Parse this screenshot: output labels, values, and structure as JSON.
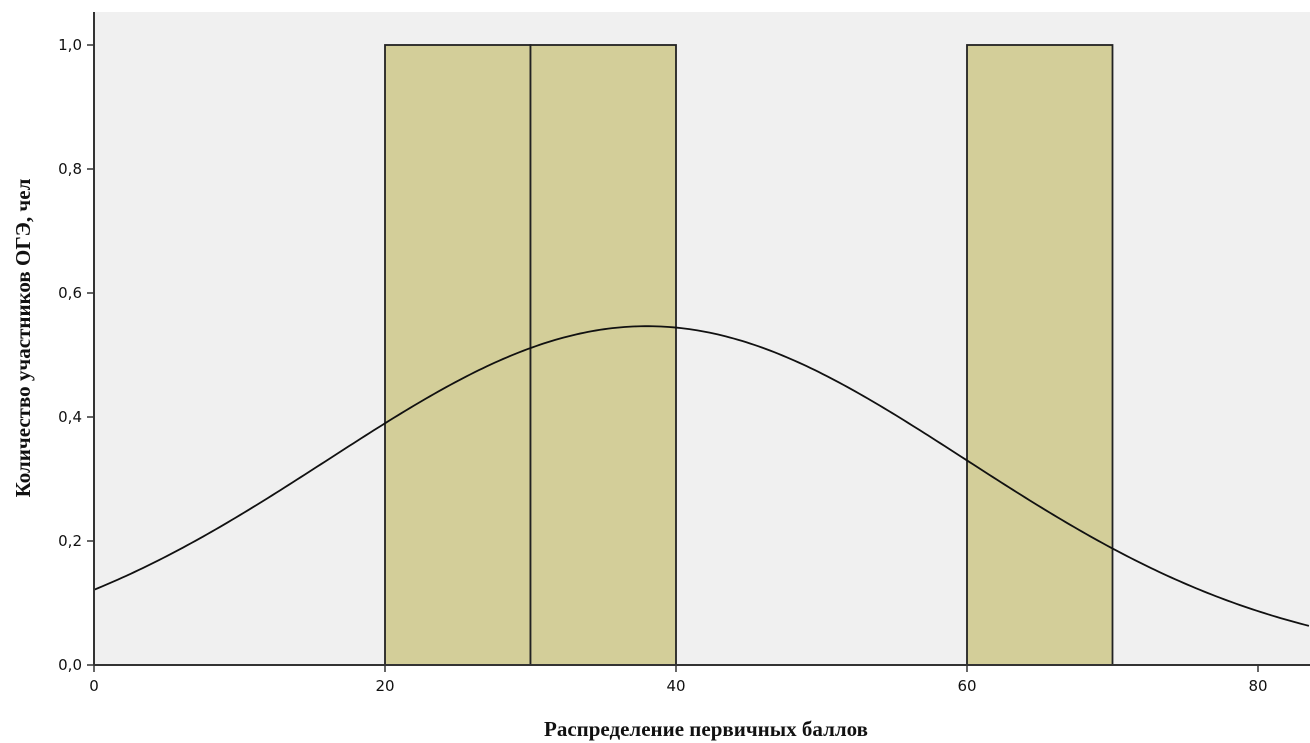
{
  "chart_data": {
    "type": "bar",
    "title": "",
    "xlabel": "Распределение первичных баллов",
    "ylabel": "Количество участников ОГЭ, чел",
    "xlim": [
      0,
      83.5
    ],
    "ylim": [
      0,
      1.05
    ],
    "x_ticks": [
      {
        "value": 0,
        "label": "0"
      },
      {
        "value": 20,
        "label": "20"
      },
      {
        "value": 40,
        "label": "40"
      },
      {
        "value": 60,
        "label": "60"
      },
      {
        "value": 80,
        "label": "80"
      }
    ],
    "y_ticks": [
      {
        "value": 0.0,
        "label": "0,0"
      },
      {
        "value": 0.2,
        "label": "0,2"
      },
      {
        "value": 0.4,
        "label": "0,4"
      },
      {
        "value": 0.6,
        "label": "0,6"
      },
      {
        "value": 0.8,
        "label": "0,8"
      },
      {
        "value": 1.0,
        "label": "1,0"
      }
    ],
    "bins": [
      {
        "start": 20,
        "end": 30,
        "count": 1
      },
      {
        "start": 30,
        "end": 40,
        "count": 1
      },
      {
        "start": 60,
        "end": 70,
        "count": 1
      }
    ],
    "normal_curve": {
      "mean": 38,
      "std": 21.9,
      "n": 3,
      "bin_width": 10
    },
    "grid": false,
    "colors": {
      "plot_background": "#f0f0f0",
      "bar_fill": "#d3ce99",
      "bar_stroke": "#222222",
      "curve": "#111111",
      "axis": "#333333"
    }
  }
}
